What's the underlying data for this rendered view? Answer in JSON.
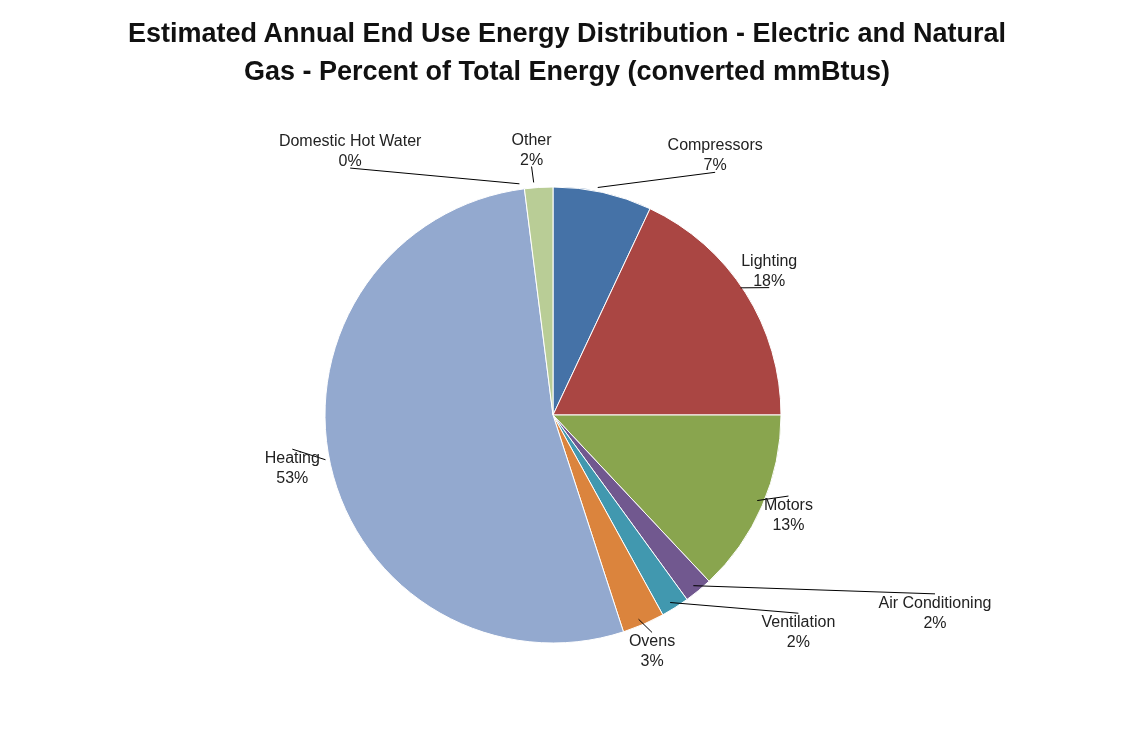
{
  "chart_data": {
    "type": "pie",
    "title": "Estimated Annual End Use Energy Distribution  - Electric and Natural Gas - Percent of Total Energy (converted mmBtus)",
    "categories": [
      "Compressors",
      "Lighting",
      "Motors",
      "Air Conditioning",
      "Ventilation",
      "Ovens",
      "Heating",
      "Domestic Hot Water",
      "Other"
    ],
    "values": [
      7,
      18,
      13,
      2,
      2,
      3,
      53,
      0,
      2
    ],
    "value_labels": [
      "7%",
      "18%",
      "13%",
      "2%",
      "2%",
      "3%",
      "53%",
      "0%",
      "2%"
    ],
    "colors": [
      "#4572a7",
      "#aa4643",
      "#89a54e",
      "#71588f",
      "#4198af",
      "#db843d",
      "#93a9cf",
      "#d19392",
      "#b9cd96"
    ]
  }
}
